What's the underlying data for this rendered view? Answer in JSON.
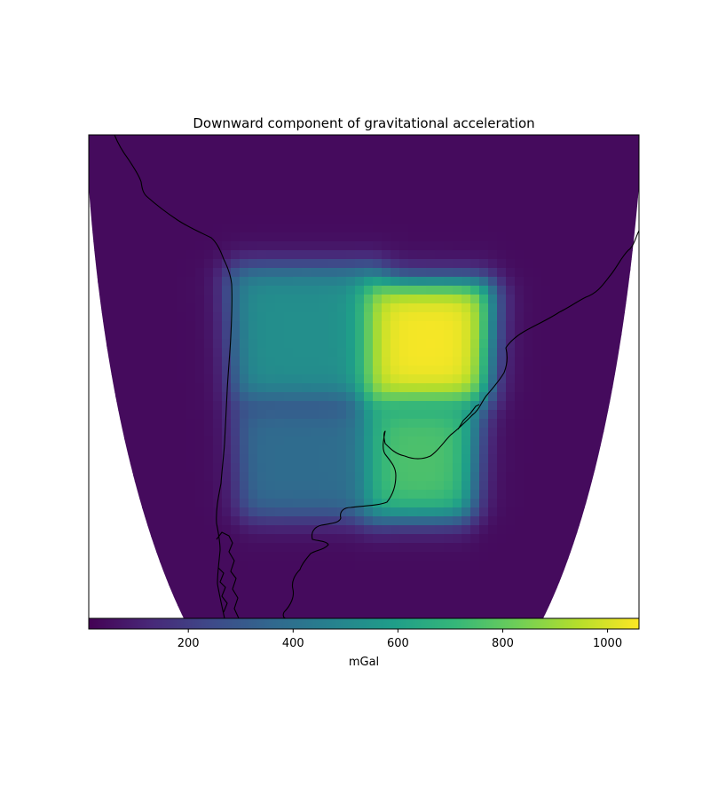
{
  "chart_data": {
    "type": "heatmap",
    "title": "Downward component of gravitational acceleration",
    "colorbar": {
      "label": "mGal",
      "range": [
        10,
        1060
      ],
      "ticks": [
        200,
        400,
        600,
        800,
        1000
      ],
      "tick_labels": [
        "200",
        "400",
        "600",
        "800",
        "1000"
      ],
      "colormap": "viridis",
      "orientation": "horizontal",
      "placement": "bottom"
    },
    "background_value": 40,
    "anomaly_blocks": [
      {
        "name": "north-west prism",
        "value": 530,
        "position": "upper-left"
      },
      {
        "name": "north-east prism",
        "value": 1050,
        "position": "upper-right"
      },
      {
        "name": "south-west prism",
        "value": 380,
        "position": "lower-left"
      },
      {
        "name": "south-east prism",
        "value": 760,
        "position": "lower-right"
      }
    ],
    "map": {
      "projection": "conic",
      "coastlines": true,
      "region": "southern South America"
    },
    "colors": {
      "viridis_stops": [
        "#440154",
        "#482878",
        "#3e4989",
        "#31688e",
        "#26828e",
        "#1f9e89",
        "#35b779",
        "#6ece58",
        "#b5de2b",
        "#fde725"
      ],
      "coastline": "#000000",
      "frame": "#000000"
    }
  }
}
